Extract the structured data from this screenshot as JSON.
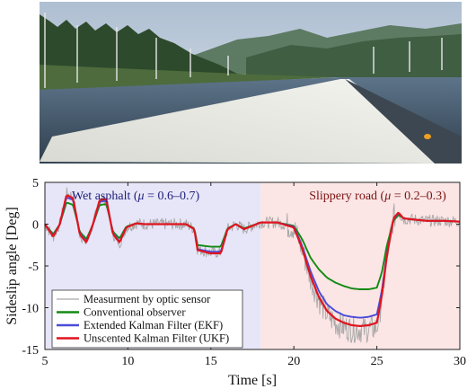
{
  "chart_data": {
    "type": "line",
    "xlabel": "Time [s]",
    "ylabel": "Sideslip angle [Deg]",
    "xlim": [
      5,
      30
    ],
    "ylim": [
      -15,
      5
    ],
    "xticks": [
      "5",
      "10",
      "15",
      "20",
      "25",
      "30"
    ],
    "yticks": [
      "5",
      "0",
      "-5",
      "-10",
      "-15"
    ],
    "regions": [
      {
        "label_prefix": "Wet asphalt (",
        "mu_symbol": "μ",
        "label_suffix": " = 0.6–0.7)",
        "x_range": [
          5,
          18
        ],
        "color": "#e7e6f8",
        "text_color": "#1e1e7a"
      },
      {
        "label_prefix": "Slippery road (",
        "mu_symbol": "μ",
        "label_suffix": " = 0.2–0.3)",
        "x_range": [
          18,
          30
        ],
        "color": "#fbe5e5",
        "text_color": "#7a1212"
      }
    ],
    "series": [
      {
        "name": "Measurment by optic sensor",
        "color": "#a8a8a8",
        "noisy": true,
        "x": [
          5,
          5.5,
          5.9,
          6.3,
          6.7,
          7.1,
          7.5,
          7.9,
          8.3,
          8.7,
          9.1,
          9.5,
          9.9,
          10.5,
          11,
          12,
          13,
          13.5,
          14,
          14.2,
          15,
          15.6,
          16,
          16.5,
          17,
          18,
          19,
          20,
          20.5,
          21,
          21.5,
          22,
          22.5,
          23,
          23.5,
          24,
          24.5,
          25,
          25.3,
          25.6,
          26,
          26.3,
          26.6,
          27,
          28,
          29,
          30
        ],
        "y": [
          0,
          -1.5,
          0,
          3.7,
          3.3,
          -1.2,
          -2.3,
          0,
          2.8,
          3.0,
          -1.2,
          -2.3,
          -0.4,
          0.1,
          0,
          0,
          0,
          0,
          -0.6,
          -3.0,
          -3.4,
          -3.4,
          -0.6,
          0,
          -0.6,
          0.2,
          0.2,
          -0.4,
          -3.0,
          -6.5,
          -9.0,
          -10.8,
          -11.8,
          -12.3,
          -12.6,
          -12.6,
          -12.6,
          -12.4,
          -9.0,
          -4.0,
          0.8,
          1.4,
          0.6,
          0.6,
          0.4,
          0.4,
          0.3
        ]
      },
      {
        "name": "Conventional observer",
        "color": "#138a13",
        "x": [
          5,
          5.5,
          5.9,
          6.3,
          6.7,
          7.1,
          7.5,
          7.9,
          8.3,
          8.7,
          9.1,
          9.5,
          9.9,
          10.5,
          11,
          12,
          13,
          13.5,
          14,
          14.2,
          15,
          15.6,
          16,
          16.5,
          17,
          18,
          19,
          20,
          20.5,
          21,
          21.5,
          22,
          22.5,
          23,
          23.5,
          24,
          24.5,
          25,
          25.3,
          25.6,
          26,
          26.3,
          26.6,
          27,
          28,
          29,
          30
        ],
        "y": [
          0,
          -1.2,
          0,
          2.6,
          2.3,
          -0.9,
          -1.8,
          0,
          2.3,
          2.4,
          -0.9,
          -1.7,
          -0.3,
          0.1,
          0,
          0,
          0,
          0,
          -0.5,
          -2.5,
          -2.7,
          -2.7,
          -0.5,
          0,
          -0.5,
          0.2,
          0.2,
          -0.2,
          -1.8,
          -4.0,
          -5.4,
          -6.4,
          -7.0,
          -7.4,
          -7.7,
          -7.8,
          -7.8,
          -7.6,
          -5.8,
          -2.6,
          0.4,
          1.1,
          0.7,
          0.6,
          0.4,
          0.4,
          0.3
        ]
      },
      {
        "name": "Extended Kalman Filter (EKF)",
        "color": "#4b4bd8",
        "x": [
          5,
          5.5,
          5.9,
          6.3,
          6.7,
          7.1,
          7.5,
          7.9,
          8.3,
          8.7,
          9.1,
          9.5,
          9.9,
          10.5,
          11,
          12,
          13,
          13.5,
          14,
          14.2,
          15,
          15.6,
          16,
          16.5,
          17,
          18,
          19,
          20,
          20.5,
          21,
          21.5,
          22,
          22.5,
          23,
          23.5,
          24,
          24.5,
          25,
          25.3,
          25.6,
          26,
          26.3,
          26.6,
          27,
          28,
          29,
          30
        ],
        "y": [
          0,
          -1.4,
          0,
          3.2,
          2.9,
          -1.1,
          -2.1,
          0,
          2.7,
          2.8,
          -1.1,
          -2.1,
          -0.4,
          0.1,
          0,
          0,
          0,
          0,
          -0.6,
          -3.0,
          -3.3,
          -3.3,
          -0.6,
          0,
          -0.6,
          0.2,
          0.2,
          -0.3,
          -2.6,
          -5.6,
          -8.0,
          -9.6,
          -10.4,
          -10.9,
          -11.1,
          -11.2,
          -11.1,
          -10.8,
          -8.0,
          -3.6,
          0.6,
          1.3,
          0.7,
          0.6,
          0.4,
          0.4,
          0.3
        ]
      },
      {
        "name": "Unscented Kalman Filter (UKF)",
        "color": "#e0141f",
        "x": [
          5,
          5.5,
          5.9,
          6.3,
          6.7,
          7.1,
          7.5,
          7.9,
          8.3,
          8.7,
          9.1,
          9.5,
          9.9,
          10.5,
          11,
          12,
          13,
          13.5,
          14,
          14.2,
          15,
          15.6,
          16,
          16.5,
          17,
          18,
          19,
          20,
          20.5,
          21,
          21.5,
          22,
          22.5,
          23,
          23.5,
          24,
          24.5,
          25,
          25.3,
          25.6,
          26,
          26.3,
          26.6,
          27,
          28,
          29,
          30
        ],
        "y": [
          0,
          -1.5,
          0,
          3.5,
          3.1,
          -1.2,
          -2.2,
          0,
          2.9,
          3.0,
          -1.2,
          -2.2,
          -0.4,
          0.1,
          0,
          0,
          0,
          0,
          -0.6,
          -3.1,
          -3.5,
          -3.5,
          -0.6,
          0,
          -0.6,
          0.2,
          0.2,
          -0.4,
          -2.9,
          -6.2,
          -8.7,
          -10.4,
          -11.3,
          -11.8,
          -12.1,
          -12.2,
          -12.1,
          -11.8,
          -8.6,
          -3.9,
          0.7,
          1.4,
          0.7,
          0.6,
          0.4,
          0.4,
          0.3
        ]
      }
    ],
    "legend_placement": "bottom-left",
    "grid": false
  }
}
